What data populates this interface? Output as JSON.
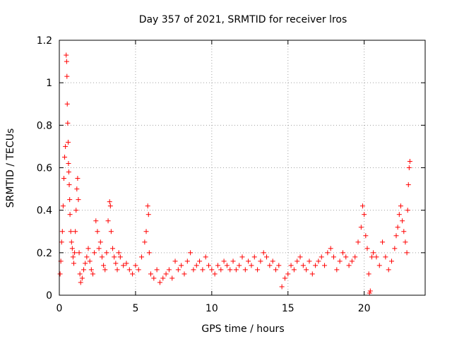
{
  "chart_data": {
    "type": "scatter",
    "title": "Day 357 of 2021, SRMTID for receiver lros",
    "xlabel": "GPS time / hours",
    "ylabel": "SRMTID / TECUs",
    "xlim": [
      0,
      24
    ],
    "ylim": [
      0,
      1.2
    ],
    "xticks": [
      0,
      5,
      10,
      15,
      20
    ],
    "xtick_labels": [
      "0",
      "5",
      "10",
      "15",
      "20"
    ],
    "yticks": [
      0,
      0.2,
      0.4,
      0.6,
      0.8,
      1.0,
      1.2
    ],
    "ytick_labels": [
      "0",
      "0.2",
      "0.4",
      "0.6",
      "0.8",
      "1",
      "1.2"
    ],
    "grid": true,
    "marker": "+",
    "color": "#ff0000",
    "series": [
      {
        "name": "SRMTID",
        "points": [
          [
            0.05,
            0.1
          ],
          [
            0.1,
            0.16
          ],
          [
            0.15,
            0.25
          ],
          [
            0.2,
            0.3
          ],
          [
            0.25,
            0.42
          ],
          [
            0.3,
            0.55
          ],
          [
            0.35,
            0.65
          ],
          [
            0.4,
            0.7
          ],
          [
            0.45,
            1.13
          ],
          [
            0.48,
            1.1
          ],
          [
            0.5,
            1.03
          ],
          [
            0.52,
            0.9
          ],
          [
            0.55,
            0.81
          ],
          [
            0.58,
            0.72
          ],
          [
            0.6,
            0.62
          ],
          [
            0.62,
            0.58
          ],
          [
            0.65,
            0.52
          ],
          [
            0.68,
            0.45
          ],
          [
            0.7,
            0.38
          ],
          [
            0.75,
            0.3
          ],
          [
            0.8,
            0.25
          ],
          [
            0.85,
            0.22
          ],
          [
            0.9,
            0.18
          ],
          [
            0.95,
            0.15
          ],
          [
            1.0,
            0.2
          ],
          [
            1.05,
            0.3
          ],
          [
            1.1,
            0.4
          ],
          [
            1.15,
            0.5
          ],
          [
            1.2,
            0.55
          ],
          [
            1.25,
            0.45
          ],
          [
            1.3,
            0.2
          ],
          [
            1.35,
            0.1
          ],
          [
            1.4,
            0.06
          ],
          [
            1.5,
            0.08
          ],
          [
            1.6,
            0.12
          ],
          [
            1.7,
            0.15
          ],
          [
            1.8,
            0.18
          ],
          [
            1.9,
            0.22
          ],
          [
            2.0,
            0.16
          ],
          [
            2.1,
            0.12
          ],
          [
            2.2,
            0.1
          ],
          [
            2.3,
            0.2
          ],
          [
            2.4,
            0.35
          ],
          [
            2.5,
            0.3
          ],
          [
            2.6,
            0.22
          ],
          [
            2.7,
            0.25
          ],
          [
            2.8,
            0.18
          ],
          [
            2.9,
            0.14
          ],
          [
            3.0,
            0.12
          ],
          [
            3.1,
            0.2
          ],
          [
            3.2,
            0.35
          ],
          [
            3.3,
            0.44
          ],
          [
            3.35,
            0.42
          ],
          [
            3.4,
            0.3
          ],
          [
            3.5,
            0.22
          ],
          [
            3.6,
            0.18
          ],
          [
            3.7,
            0.15
          ],
          [
            3.8,
            0.12
          ],
          [
            3.9,
            0.2
          ],
          [
            4.0,
            0.18
          ],
          [
            4.2,
            0.14
          ],
          [
            4.4,
            0.15
          ],
          [
            4.6,
            0.12
          ],
          [
            4.8,
            0.1
          ],
          [
            5.0,
            0.14
          ],
          [
            5.2,
            0.12
          ],
          [
            5.4,
            0.18
          ],
          [
            5.6,
            0.25
          ],
          [
            5.7,
            0.3
          ],
          [
            5.8,
            0.42
          ],
          [
            5.85,
            0.38
          ],
          [
            5.9,
            0.2
          ],
          [
            6.0,
            0.1
          ],
          [
            6.2,
            0.08
          ],
          [
            6.4,
            0.12
          ],
          [
            6.6,
            0.06
          ],
          [
            6.8,
            0.08
          ],
          [
            7.0,
            0.1
          ],
          [
            7.2,
            0.12
          ],
          [
            7.4,
            0.08
          ],
          [
            7.6,
            0.16
          ],
          [
            7.8,
            0.12
          ],
          [
            8.0,
            0.14
          ],
          [
            8.2,
            0.1
          ],
          [
            8.4,
            0.16
          ],
          [
            8.6,
            0.2
          ],
          [
            8.8,
            0.12
          ],
          [
            9.0,
            0.14
          ],
          [
            9.2,
            0.16
          ],
          [
            9.4,
            0.12
          ],
          [
            9.6,
            0.18
          ],
          [
            9.8,
            0.14
          ],
          [
            10.0,
            0.12
          ],
          [
            10.2,
            0.1
          ],
          [
            10.4,
            0.14
          ],
          [
            10.6,
            0.12
          ],
          [
            10.8,
            0.16
          ],
          [
            11.0,
            0.14
          ],
          [
            11.2,
            0.12
          ],
          [
            11.4,
            0.16
          ],
          [
            11.6,
            0.12
          ],
          [
            11.8,
            0.14
          ],
          [
            12.0,
            0.18
          ],
          [
            12.2,
            0.12
          ],
          [
            12.4,
            0.16
          ],
          [
            12.6,
            0.14
          ],
          [
            12.8,
            0.18
          ],
          [
            13.0,
            0.12
          ],
          [
            13.2,
            0.16
          ],
          [
            13.4,
            0.2
          ],
          [
            13.6,
            0.18
          ],
          [
            13.8,
            0.14
          ],
          [
            14.0,
            0.16
          ],
          [
            14.2,
            0.12
          ],
          [
            14.4,
            0.14
          ],
          [
            14.6,
            0.04
          ],
          [
            14.8,
            0.08
          ],
          [
            15.0,
            0.1
          ],
          [
            15.2,
            0.14
          ],
          [
            15.4,
            0.12
          ],
          [
            15.6,
            0.16
          ],
          [
            15.8,
            0.18
          ],
          [
            16.0,
            0.14
          ],
          [
            16.2,
            0.12
          ],
          [
            16.4,
            0.16
          ],
          [
            16.6,
            0.1
          ],
          [
            16.8,
            0.14
          ],
          [
            17.0,
            0.16
          ],
          [
            17.2,
            0.18
          ],
          [
            17.4,
            0.14
          ],
          [
            17.6,
            0.2
          ],
          [
            17.8,
            0.22
          ],
          [
            18.0,
            0.18
          ],
          [
            18.2,
            0.12
          ],
          [
            18.4,
            0.16
          ],
          [
            18.6,
            0.2
          ],
          [
            18.8,
            0.18
          ],
          [
            19.0,
            0.14
          ],
          [
            19.2,
            0.16
          ],
          [
            19.4,
            0.18
          ],
          [
            19.6,
            0.25
          ],
          [
            19.8,
            0.32
          ],
          [
            19.9,
            0.42
          ],
          [
            20.0,
            0.38
          ],
          [
            20.1,
            0.28
          ],
          [
            20.2,
            0.22
          ],
          [
            20.3,
            0.1
          ],
          [
            20.35,
            0.01
          ],
          [
            20.4,
            0.02
          ],
          [
            20.5,
            0.18
          ],
          [
            20.6,
            0.2
          ],
          [
            20.8,
            0.18
          ],
          [
            21.0,
            0.14
          ],
          [
            21.2,
            0.25
          ],
          [
            21.4,
            0.18
          ],
          [
            21.6,
            0.12
          ],
          [
            21.8,
            0.16
          ],
          [
            22.0,
            0.22
          ],
          [
            22.1,
            0.28
          ],
          [
            22.2,
            0.32
          ],
          [
            22.3,
            0.38
          ],
          [
            22.4,
            0.42
          ],
          [
            22.5,
            0.35
          ],
          [
            22.6,
            0.3
          ],
          [
            22.7,
            0.25
          ],
          [
            22.8,
            0.2
          ],
          [
            22.85,
            0.4
          ],
          [
            22.9,
            0.52
          ],
          [
            22.95,
            0.6
          ],
          [
            23.0,
            0.63
          ]
        ]
      }
    ]
  }
}
